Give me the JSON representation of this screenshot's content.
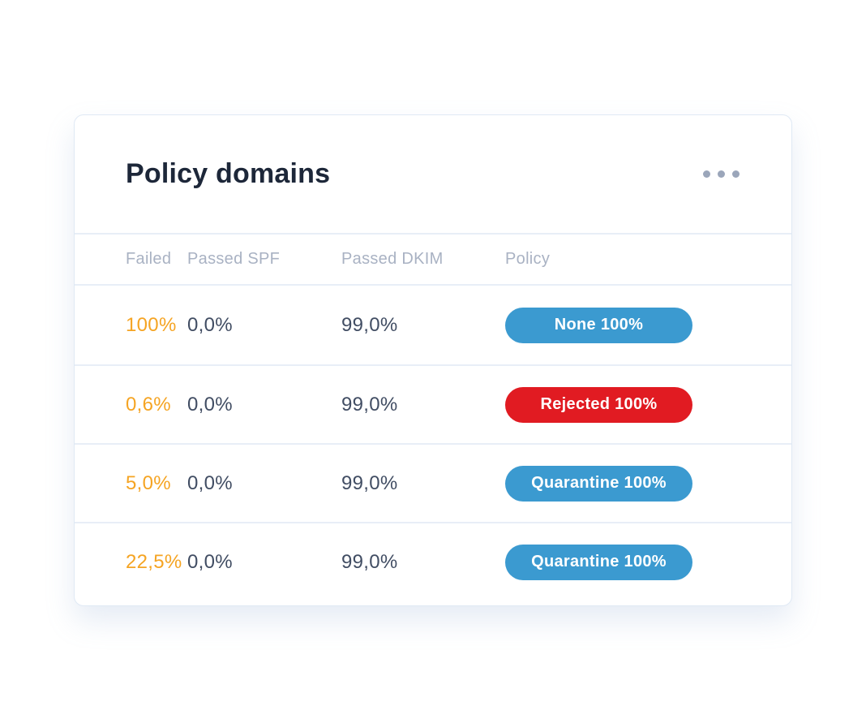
{
  "card": {
    "title": "Policy domains",
    "menu_icon": "ellipsis-horizontal",
    "table": {
      "headers": [
        "Failed",
        "Passed SPF",
        "Passed DKIM",
        "Policy"
      ],
      "rows": [
        {
          "failed": "100%",
          "passed_spf": "0,0%",
          "passed_dkim": "99,0%",
          "policy": {
            "label": "None 100%",
            "variant": "blue"
          }
        },
        {
          "failed": "0,6%",
          "passed_spf": "0,0%",
          "passed_dkim": "99,0%",
          "policy": {
            "label": "Rejected 100%",
            "variant": "red"
          }
        },
        {
          "failed": "5,0%",
          "passed_spf": "0,0%",
          "passed_dkim": "99,0%",
          "policy": {
            "label": "Quarantine 100%",
            "variant": "blue"
          }
        },
        {
          "failed": "22,5%",
          "passed_spf": "0,0%",
          "passed_dkim": "99,0%",
          "policy": {
            "label": "Quarantine 100%",
            "variant": "blue"
          }
        }
      ]
    }
  },
  "colors": {
    "title_navy": "#1d2739",
    "cell_dark": "#414d63",
    "failed_orange": "#f5a423",
    "header_gray": "#a9b2c3",
    "pill_blue": "#3b9ad0",
    "pill_red": "#e11b22",
    "divider": "#e8eef7",
    "card_border": "#dfe9f4",
    "dots_gray": "#9ba6ba"
  }
}
